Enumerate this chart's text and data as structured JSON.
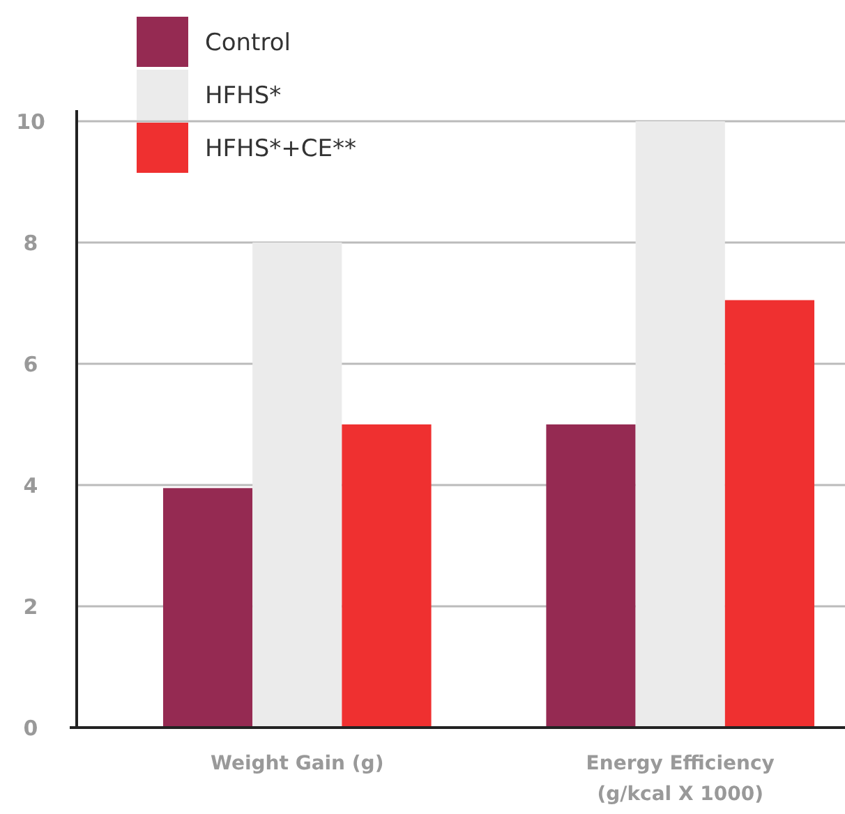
{
  "chart_data": {
    "type": "bar",
    "categories": [
      "Weight Gain (g)",
      "Energy Efficiency (g/kcal X 1000)"
    ],
    "series": [
      {
        "name": "Control",
        "color": "#952a52",
        "values": [
          3.95,
          5.0
        ]
      },
      {
        "name": "HFHS*",
        "color": "#ebebeb",
        "values": [
          8.0,
          10.0
        ]
      },
      {
        "name": "HFHS*+CE**",
        "color": "#ef3030",
        "values": [
          5.0,
          7.05
        ]
      }
    ],
    "ylim": [
      0,
      10
    ],
    "yticks": [
      0,
      2,
      4,
      6,
      8,
      10
    ],
    "grid": "y",
    "legend": "top left"
  }
}
